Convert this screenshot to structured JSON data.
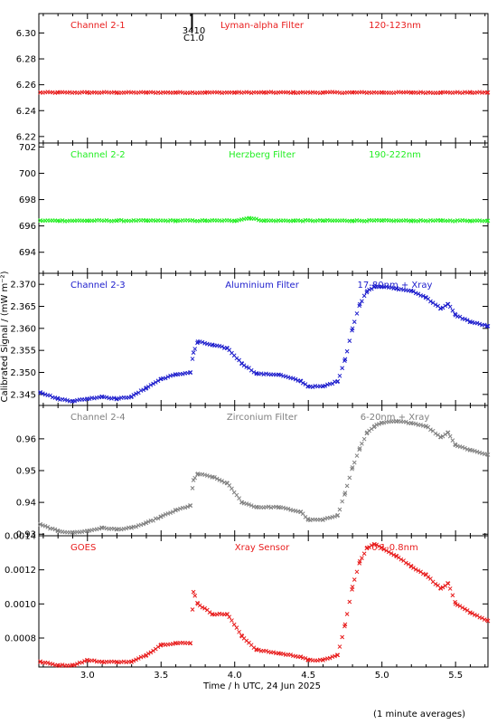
{
  "footer_note": "(1 minute averages)",
  "marker_labels": [
    "3410",
    "C1.0"
  ],
  "chart_data": {
    "type": "scatter",
    "xlabel": "Time / h UTC, 24 Jun 2025",
    "ylabel": "Calibrated Signal / (mW m⁻²)",
    "xlim": [
      2.67,
      5.72
    ],
    "xticks": [
      3.0,
      3.5,
      4.0,
      4.5,
      5.0,
      5.5
    ],
    "xtick_labels": [
      "3.0",
      "3.5",
      "4.0",
      "4.5",
      "5.0",
      "5.5"
    ],
    "event_marker_x": 3.71,
    "panels": [
      {
        "channel": "Channel 2-1",
        "filter": "Lyman-alpha Filter",
        "band": "120-123nm",
        "color": "#e81c1c",
        "marker": "x",
        "ylim": [
          6.215,
          6.315
        ],
        "yticks": [
          6.22,
          6.24,
          6.26,
          6.28,
          6.3
        ],
        "ytick_labels": [
          "6.22",
          "6.24",
          "6.26",
          "6.28",
          "6.30"
        ],
        "x": [
          2.68,
          2.8,
          3.0,
          3.2,
          3.4,
          3.6,
          3.8,
          4.0,
          4.2,
          4.4,
          4.6,
          4.8,
          5.0,
          5.2,
          5.4,
          5.6,
          5.72
        ],
        "y": [
          6.254,
          6.254,
          6.254,
          6.254,
          6.254,
          6.254,
          6.254,
          6.254,
          6.254,
          6.254,
          6.254,
          6.254,
          6.254,
          6.254,
          6.254,
          6.254,
          6.254
        ]
      },
      {
        "channel": "Channel 2-2",
        "filter": "Herzberg Filter",
        "band": "190-222nm",
        "color": "#22ee22",
        "marker": "x",
        "ylim": [
          692.4,
          702.3
        ],
        "yticks": [
          694,
          696,
          698,
          700,
          702
        ],
        "ytick_labels": [
          "694",
          "696",
          "698",
          "700",
          "702"
        ],
        "x": [
          2.68,
          2.8,
          3.0,
          3.2,
          3.4,
          3.6,
          3.8,
          4.0,
          4.1,
          4.2,
          4.4,
          4.6,
          4.8,
          5.0,
          5.2,
          5.4,
          5.6,
          5.72
        ],
        "y": [
          696.4,
          696.4,
          696.4,
          696.4,
          696.4,
          696.4,
          696.4,
          696.4,
          696.6,
          696.4,
          696.4,
          696.4,
          696.4,
          696.4,
          696.4,
          696.4,
          696.4,
          696.4
        ]
      },
      {
        "channel": "Channel 2-3",
        "filter": "Aluminium Filter",
        "band": "17-80nm + Xray",
        "color": "#1c1ccc",
        "marker": "x",
        "ylim": [
          2.3425,
          2.3725
        ],
        "yticks": [
          2.345,
          2.35,
          2.355,
          2.36,
          2.365,
          2.37
        ],
        "ytick_labels": [
          "2.345",
          "2.350",
          "2.355",
          "2.360",
          "2.365",
          "2.370"
        ],
        "x": [
          2.68,
          2.8,
          2.9,
          3.0,
          3.1,
          3.2,
          3.3,
          3.4,
          3.5,
          3.6,
          3.7,
          3.72,
          3.75,
          3.85,
          3.95,
          4.05,
          4.15,
          4.3,
          4.45,
          4.5,
          4.6,
          4.7,
          4.75,
          4.8,
          4.85,
          4.9,
          4.95,
          5.0,
          5.1,
          5.2,
          5.3,
          5.4,
          5.45,
          5.5,
          5.6,
          5.72
        ],
        "y": [
          2.3455,
          2.344,
          2.3435,
          2.344,
          2.3445,
          2.344,
          2.3445,
          2.3465,
          2.3485,
          2.3495,
          2.35,
          2.3545,
          2.357,
          2.3562,
          2.3555,
          2.352,
          2.3497,
          2.3495,
          2.348,
          2.3468,
          2.3468,
          2.348,
          2.353,
          2.36,
          2.3655,
          2.3685,
          2.3695,
          2.3695,
          2.369,
          2.3685,
          2.367,
          2.3645,
          2.3655,
          2.363,
          2.3615,
          2.3605
        ]
      },
      {
        "channel": "Channel 2-4",
        "filter": "Zirconium Filter",
        "band": "6-20nm + Xray",
        "color": "#808080",
        "marker": "x",
        "ylim": [
          0.9295,
          0.9705
        ],
        "yticks": [
          0.93,
          0.94,
          0.95,
          0.96
        ],
        "ytick_labels": [
          "0.93",
          "0.94",
          "0.95",
          "0.96"
        ],
        "x": [
          2.68,
          2.8,
          2.9,
          3.0,
          3.1,
          3.2,
          3.3,
          3.4,
          3.5,
          3.6,
          3.7,
          3.72,
          3.75,
          3.85,
          3.95,
          4.05,
          4.15,
          4.3,
          4.45,
          4.5,
          4.6,
          4.7,
          4.75,
          4.8,
          4.85,
          4.9,
          4.95,
          5.0,
          5.1,
          5.2,
          5.3,
          5.4,
          5.45,
          5.5,
          5.6,
          5.72
        ],
        "y": [
          0.933,
          0.931,
          0.9305,
          0.931,
          0.932,
          0.9315,
          0.932,
          0.9335,
          0.9355,
          0.9375,
          0.939,
          0.947,
          0.949,
          0.948,
          0.946,
          0.94,
          0.9385,
          0.9385,
          0.937,
          0.9345,
          0.9345,
          0.936,
          0.943,
          0.951,
          0.957,
          0.962,
          0.964,
          0.965,
          0.9655,
          0.965,
          0.964,
          0.9605,
          0.962,
          0.958,
          0.9565,
          0.955
        ]
      },
      {
        "channel": "GOES",
        "filter": "Xray Sensor",
        "band": "0.1-0.8nm",
        "color": "#e81c1c",
        "marker": "x",
        "ylim": [
          0.00063,
          0.0014
        ],
        "yticks": [
          0.0008,
          0.001,
          0.0012,
          0.0014
        ],
        "ytick_labels": [
          "0.0008",
          "0.0010",
          "0.0012",
          "0.0014"
        ],
        "x": [
          2.68,
          2.8,
          2.9,
          3.0,
          3.1,
          3.2,
          3.3,
          3.4,
          3.5,
          3.6,
          3.7,
          3.72,
          3.75,
          3.85,
          3.95,
          4.05,
          4.15,
          4.3,
          4.45,
          4.5,
          4.6,
          4.7,
          4.75,
          4.8,
          4.85,
          4.9,
          4.95,
          5.0,
          5.1,
          5.2,
          5.3,
          5.4,
          5.45,
          5.5,
          5.6,
          5.72
        ],
        "y": [
          0.00066,
          0.00064,
          0.00064,
          0.00067,
          0.00066,
          0.00066,
          0.00066,
          0.0007,
          0.00076,
          0.00077,
          0.00077,
          0.00107,
          0.001,
          0.00094,
          0.00094,
          0.00081,
          0.00073,
          0.00071,
          0.00069,
          0.00067,
          0.00067,
          0.0007,
          0.00088,
          0.0011,
          0.00125,
          0.00133,
          0.00135,
          0.00133,
          0.00128,
          0.00122,
          0.00117,
          0.00109,
          0.00112,
          0.001,
          0.00095,
          0.0009
        ]
      }
    ]
  }
}
